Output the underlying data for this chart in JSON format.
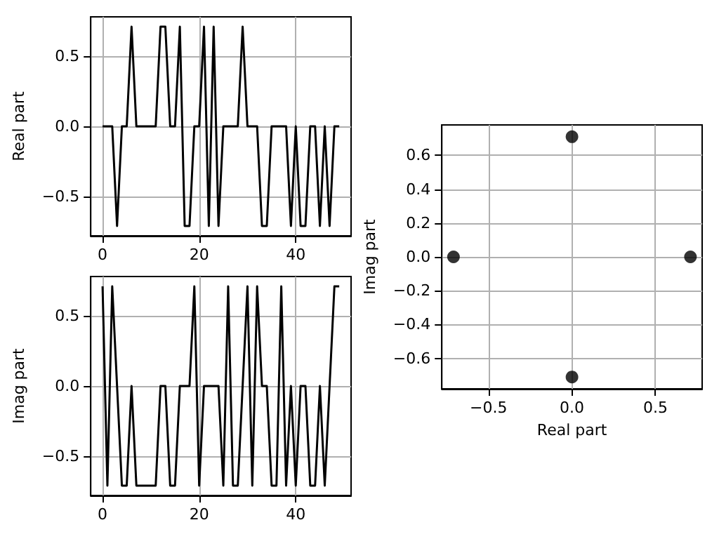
{
  "chart_data": [
    {
      "type": "line",
      "ylabel": "Real part",
      "x": [
        0,
        1,
        2,
        3,
        4,
        5,
        6,
        7,
        8,
        9,
        10,
        11,
        12,
        13,
        14,
        15,
        16,
        17,
        18,
        19,
        20,
        21,
        22,
        23,
        24,
        25,
        26,
        27,
        28,
        29,
        30,
        31,
        32,
        33,
        34,
        35,
        36,
        37,
        38,
        39,
        40,
        41,
        42,
        43,
        44,
        45,
        46,
        47,
        48,
        49
      ],
      "series": [
        {
          "color": "#000000",
          "values": [
            0,
            0,
            0,
            -0.71,
            0,
            0,
            0.71,
            0,
            0,
            0,
            0,
            0,
            0.71,
            0.71,
            0,
            0,
            0.71,
            -0.71,
            -0.71,
            0,
            0,
            0.71,
            -0.71,
            0.71,
            -0.71,
            0,
            0,
            0,
            0,
            0.71,
            0,
            0,
            0,
            -0.71,
            -0.71,
            0,
            0,
            0,
            0,
            -0.71,
            0,
            -0.71,
            -0.71,
            0,
            0,
            -0.71,
            0,
            -0.71,
            0,
            0
          ]
        }
      ],
      "xlim": [
        -2.45,
        51.45
      ],
      "xticks": [
        0,
        20,
        40
      ],
      "ylim": [
        -0.78,
        0.78
      ],
      "yticks": [
        {
          "value": -0.5,
          "label": "−0.5"
        },
        {
          "value": 0,
          "label": "0.0"
        },
        0.5
      ],
      "grid": true,
      "marker": "none",
      "line_style": "solid"
    },
    {
      "type": "line",
      "ylabel": "Imag part",
      "x": [
        0,
        1,
        2,
        3,
        4,
        5,
        6,
        7,
        8,
        9,
        10,
        11,
        12,
        13,
        14,
        15,
        16,
        17,
        18,
        19,
        20,
        21,
        22,
        23,
        24,
        25,
        26,
        27,
        28,
        29,
        30,
        31,
        32,
        33,
        34,
        35,
        36,
        37,
        38,
        39,
        40,
        41,
        42,
        43,
        44,
        45,
        46,
        47,
        48,
        49
      ],
      "series": [
        {
          "color": "#000000",
          "values": [
            0.71,
            -0.71,
            0.71,
            0,
            -0.71,
            -0.71,
            0,
            -0.71,
            -0.71,
            -0.71,
            -0.71,
            -0.71,
            0,
            0,
            -0.71,
            -0.71,
            0,
            0,
            0,
            0.71,
            -0.71,
            0,
            0,
            0,
            0,
            -0.71,
            0.71,
            -0.71,
            -0.71,
            0,
            0.71,
            -0.71,
            0.71,
            0,
            0,
            -0.71,
            -0.71,
            0.71,
            -0.71,
            0,
            -0.71,
            0,
            0,
            -0.71,
            -0.71,
            0,
            -0.71,
            0,
            0.71,
            0.71
          ]
        }
      ],
      "xlim": [
        -2.45,
        51.45
      ],
      "xticks": [
        0,
        20,
        40
      ],
      "ylim": [
        -0.78,
        0.78
      ],
      "yticks": [
        {
          "value": -0.5,
          "label": "−0.5"
        },
        {
          "value": 0,
          "label": "0.0"
        },
        0.5
      ],
      "grid": true,
      "marker": "none",
      "line_style": "solid"
    },
    {
      "type": "scatter",
      "xlabel": "Real part",
      "ylabel": "Imag part",
      "series": [
        {
          "color": "#000000",
          "x": [
            0,
            -0.71,
            0.71,
            0
          ],
          "values": [
            0.71,
            0,
            0,
            -0.71
          ]
        }
      ],
      "xlim": [
        -0.78,
        0.78
      ],
      "xticks": [
        {
          "value": -0.5,
          "label": "−0.5"
        },
        {
          "value": 0,
          "label": "0.0"
        },
        0.5
      ],
      "ylim": [
        -0.78,
        0.78
      ],
      "yticks": [
        {
          "value": -0.6,
          "label": "−0.6"
        },
        {
          "value": -0.4,
          "label": "−0.4"
        },
        {
          "value": -0.2,
          "label": "−0.2"
        },
        {
          "value": 0,
          "label": "0.0"
        },
        0.2,
        0.4,
        0.6
      ],
      "grid": true,
      "marker": "circle"
    }
  ]
}
